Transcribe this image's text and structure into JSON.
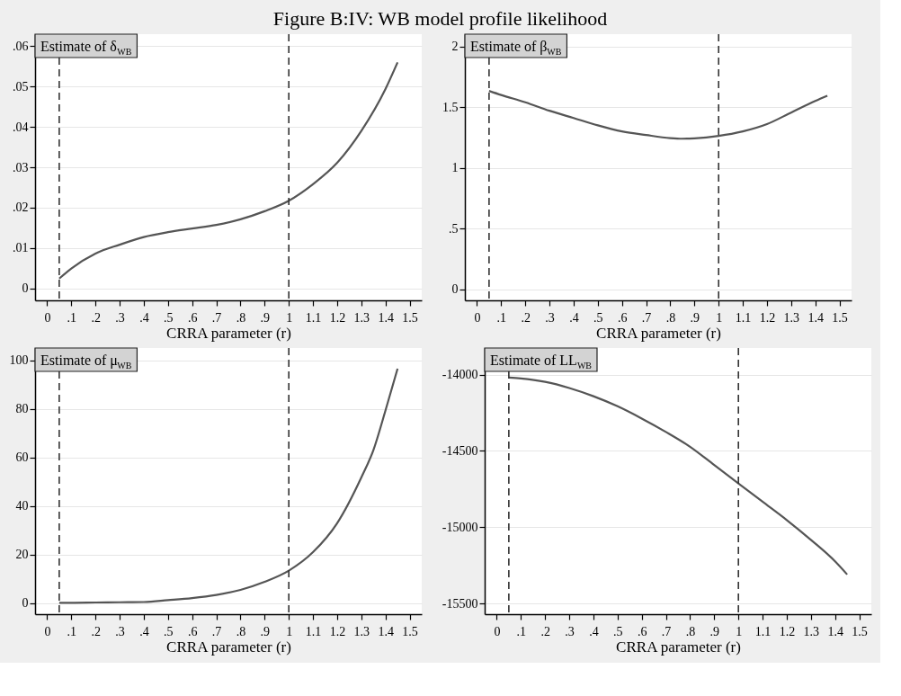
{
  "chart_data": [
    {
      "type": "line",
      "title": "Figure B:IV: WB model profile likelihood",
      "annotations": [
        "Estimate of δ$_{WB}$"
      ],
      "xlabel": "CRRA parameter (r)",
      "grid": "y",
      "marker": "none",
      "line_style": "solid",
      "x": [
        0.05,
        0.1,
        0.2,
        0.3,
        0.4,
        0.5,
        0.6,
        0.7,
        0.8,
        0.9,
        1.0,
        1.1,
        1.2,
        1.3,
        1.4,
        1.45
      ],
      "series": [
        {
          "color": "#555555",
          "values": [
            0.0024,
            0.0049,
            0.0086,
            0.0108,
            0.0127,
            0.0139,
            0.0148,
            0.0157,
            0.0171,
            0.0191,
            0.0217,
            0.0258,
            0.0311,
            0.039,
            0.0494,
            0.056
          ]
        }
      ],
      "xlim": [
        -0.05,
        1.55
      ],
      "xticks": [
        0,
        {
          "value": 0.1,
          "label": ".1"
        },
        {
          "value": 0.2,
          "label": ".2"
        },
        {
          "value": 0.3,
          "label": ".3"
        },
        {
          "value": 0.4,
          "label": ".4"
        },
        {
          "value": 0.5,
          "label": ".5"
        },
        {
          "value": 0.6,
          "label": ".6"
        },
        {
          "value": 0.7,
          "label": ".7"
        },
        {
          "value": 0.8,
          "label": ".8"
        },
        {
          "value": 0.9,
          "label": ".9"
        },
        1,
        1.1,
        1.2,
        1.3,
        1.4,
        1.5
      ],
      "ylim": [
        -0.003,
        0.063
      ],
      "yticks": [
        0,
        {
          "value": 0.01,
          "label": ".01"
        },
        {
          "value": 0.02,
          "label": ".02"
        },
        {
          "value": 0.03,
          "label": ".03"
        },
        {
          "value": 0.04,
          "label": ".04"
        },
        {
          "value": 0.05,
          "label": ".05"
        },
        {
          "value": 0.06,
          "label": ".06"
        }
      ],
      "ref_lines": [
        {
          "axis": "x",
          "value": 0.05,
          "color": "#333333",
          "line_style": "dashed"
        },
        {
          "axis": "x",
          "value": 1,
          "color": "#333333",
          "line_style": "dashed"
        }
      ]
    },
    {
      "type": "line",
      "annotations": [
        "Estimate of β$_{WB}$"
      ],
      "xlabel": "CRRA parameter (r)",
      "grid": "y",
      "marker": "none",
      "line_style": "solid",
      "x": [
        0.05,
        0.1,
        0.2,
        0.3,
        0.4,
        0.5,
        0.6,
        0.7,
        0.8,
        0.85,
        0.9,
        1.0,
        1.1,
        1.2,
        1.3,
        1.4,
        1.45
      ],
      "series": [
        {
          "color": "#555555",
          "values": [
            1.633,
            1.6,
            1.54,
            1.47,
            1.41,
            1.35,
            1.3,
            1.27,
            1.245,
            1.24,
            1.243,
            1.263,
            1.3,
            1.36,
            1.455,
            1.55,
            1.593
          ]
        }
      ],
      "xlim": [
        -0.05,
        1.55
      ],
      "xticks": [
        0,
        {
          "value": 0.1,
          "label": ".1"
        },
        {
          "value": 0.2,
          "label": ".2"
        },
        {
          "value": 0.3,
          "label": ".3"
        },
        {
          "value": 0.4,
          "label": ".4"
        },
        {
          "value": 0.5,
          "label": ".5"
        },
        {
          "value": 0.6,
          "label": ".6"
        },
        {
          "value": 0.7,
          "label": ".7"
        },
        {
          "value": 0.8,
          "label": ".8"
        },
        {
          "value": 0.9,
          "label": ".9"
        },
        1,
        1.1,
        1.2,
        1.3,
        1.4,
        1.5
      ],
      "ylim": [
        -0.09,
        2.1
      ],
      "yticks": [
        0,
        {
          "value": 0.5,
          "label": ".5"
        },
        1,
        1.5,
        2
      ],
      "ref_lines": [
        {
          "axis": "x",
          "value": 0.05,
          "color": "#333333",
          "line_style": "dashed"
        },
        {
          "axis": "x",
          "value": 1,
          "color": "#333333",
          "line_style": "dashed"
        }
      ]
    },
    {
      "type": "line",
      "annotations": [
        "Estimate of μ$_{WB}$"
      ],
      "xlabel": "CRRA parameter (r)",
      "grid": "y",
      "marker": "none",
      "line_style": "solid",
      "x": [
        0.05,
        0.1,
        0.2,
        0.3,
        0.4,
        0.5,
        0.6,
        0.7,
        0.8,
        0.9,
        1.0,
        1.1,
        1.2,
        1.3,
        1.35,
        1.4,
        1.45
      ],
      "series": [
        {
          "color": "#555555",
          "values": [
            0.2,
            0.2,
            0.3,
            0.4,
            0.5,
            1.25,
            2.1,
            3.4,
            5.5,
            8.8,
            13.4,
            21,
            32.9,
            51.7,
            63,
            79.3,
            96.5
          ]
        }
      ],
      "xlim": [
        -0.05,
        1.55
      ],
      "xticks": [
        0,
        {
          "value": 0.1,
          "label": ".1"
        },
        {
          "value": 0.2,
          "label": ".2"
        },
        {
          "value": 0.3,
          "label": ".3"
        },
        {
          "value": 0.4,
          "label": ".4"
        },
        {
          "value": 0.5,
          "label": ".5"
        },
        {
          "value": 0.6,
          "label": ".6"
        },
        {
          "value": 0.7,
          "label": ".7"
        },
        {
          "value": 0.8,
          "label": ".8"
        },
        {
          "value": 0.9,
          "label": ".9"
        },
        1,
        1.1,
        1.2,
        1.3,
        1.4,
        1.5
      ],
      "ylim": [
        -4.5,
        105
      ],
      "yticks": [
        0,
        20,
        40,
        60,
        80,
        100
      ],
      "ref_lines": [
        {
          "axis": "x",
          "value": 0.05,
          "color": "#333333",
          "line_style": "dashed"
        },
        {
          "axis": "x",
          "value": 1,
          "color": "#333333",
          "line_style": "dashed"
        }
      ]
    },
    {
      "type": "line",
      "annotations": [
        "Estimate of LL$_{WB}$"
      ],
      "xlabel": "CRRA parameter (r)",
      "grid": "y",
      "marker": "none",
      "line_style": "solid",
      "x": [
        0.05,
        0.1,
        0.2,
        0.3,
        0.4,
        0.5,
        0.6,
        0.7,
        0.8,
        0.9,
        1.0,
        1.1,
        1.2,
        1.3,
        1.4,
        1.45
      ],
      "series": [
        {
          "color": "#555555",
          "values": [
            -14020,
            -14026,
            -14048,
            -14088,
            -14142,
            -14208,
            -14288,
            -14376,
            -14473,
            -14593,
            -14713,
            -14833,
            -14953,
            -15083,
            -15224,
            -15310
          ]
        }
      ],
      "xlim": [
        -0.05,
        1.55
      ],
      "xticks": [
        0,
        {
          "value": 0.1,
          "label": ".1"
        },
        {
          "value": 0.2,
          "label": ".2"
        },
        {
          "value": 0.3,
          "label": ".3"
        },
        {
          "value": 0.4,
          "label": ".4"
        },
        {
          "value": 0.5,
          "label": ".5"
        },
        {
          "value": 0.6,
          "label": ".6"
        },
        {
          "value": 0.7,
          "label": ".7"
        },
        {
          "value": 0.8,
          "label": ".8"
        },
        {
          "value": 0.9,
          "label": ".9"
        },
        1,
        1.1,
        1.2,
        1.3,
        1.4,
        1.5
      ],
      "ylim": [
        -15570,
        -13826
      ],
      "yticks": [
        -15500,
        -15000,
        -14500,
        -14000
      ],
      "ref_lines": [
        {
          "axis": "x",
          "value": 0.05,
          "color": "#333333",
          "line_style": "dashed"
        },
        {
          "axis": "x",
          "value": 1,
          "color": "#333333",
          "line_style": "dashed"
        }
      ]
    }
  ]
}
